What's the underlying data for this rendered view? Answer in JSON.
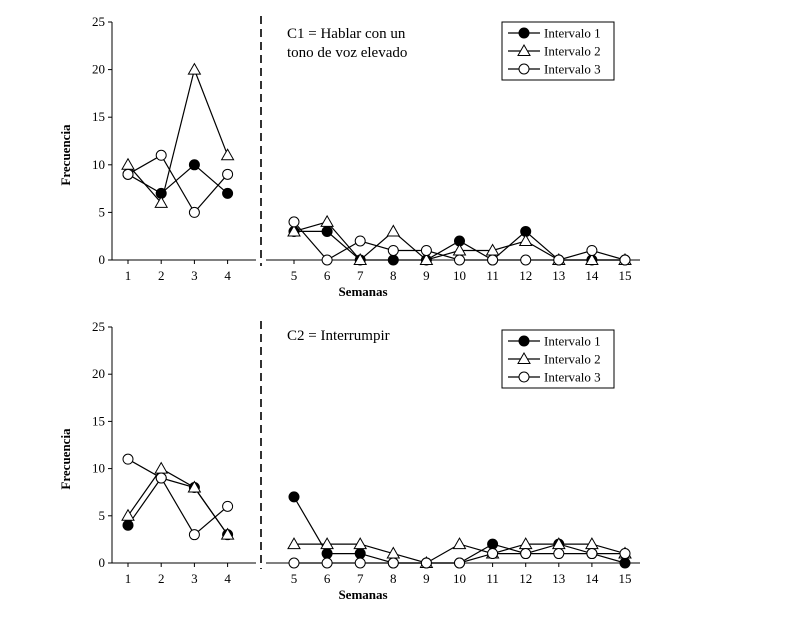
{
  "chart_data": [
    {
      "type": "line",
      "annotation": [
        "C1 = Hablar con un",
        "tono de voz elevado"
      ],
      "xlabel": "Semanas",
      "ylabel": "Frecuencia",
      "ylim": [
        0,
        25
      ],
      "yticks": [
        0,
        5,
        10,
        15,
        20,
        25
      ],
      "x": [
        1,
        2,
        3,
        4,
        5,
        6,
        7,
        8,
        9,
        10,
        11,
        12,
        13,
        14,
        15
      ],
      "phase_change_after": 4,
      "legend_position": "top-right",
      "series": [
        {
          "name": "Intervalo 1",
          "marker": "filled-circle",
          "values": [
            9,
            7,
            10,
            7,
            3,
            3,
            0,
            0,
            0,
            2,
            0,
            3,
            0,
            0,
            0
          ]
        },
        {
          "name": "Intervalo 2",
          "marker": "open-triangle",
          "values": [
            10,
            6,
            20,
            11,
            3,
            4,
            0,
            3,
            0,
            1,
            1,
            2,
            0,
            0,
            0
          ]
        },
        {
          "name": "Intervalo 3",
          "marker": "open-circle",
          "values": [
            9,
            11,
            5,
            9,
            4,
            0,
            2,
            1,
            1,
            0,
            0,
            0,
            0,
            1,
            0
          ]
        }
      ]
    },
    {
      "type": "line",
      "annotation": [
        "C2 = Interrumpir"
      ],
      "xlabel": "Semanas",
      "ylabel": "Frecuencia",
      "ylim": [
        0,
        25
      ],
      "yticks": [
        0,
        5,
        10,
        15,
        20,
        25
      ],
      "x": [
        1,
        2,
        3,
        4,
        5,
        6,
        7,
        8,
        9,
        10,
        11,
        12,
        13,
        14,
        15
      ],
      "phase_change_after": 4,
      "legend_position": "top-right",
      "series": [
        {
          "name": "Intervalo 1",
          "marker": "filled-circle",
          "values": [
            4,
            9,
            8,
            3,
            7,
            1,
            1,
            0,
            0,
            0,
            2,
            1,
            2,
            1,
            0
          ]
        },
        {
          "name": "Intervalo 2",
          "marker": "open-triangle",
          "values": [
            5,
            10,
            8,
            3,
            2,
            2,
            2,
            1,
            0,
            2,
            1,
            2,
            2,
            2,
            1
          ]
        },
        {
          "name": "Intervalo 3",
          "marker": "open-circle",
          "values": [
            11,
            9,
            3,
            6,
            0,
            0,
            0,
            0,
            0,
            0,
            1,
            1,
            1,
            1,
            1
          ]
        }
      ]
    }
  ]
}
